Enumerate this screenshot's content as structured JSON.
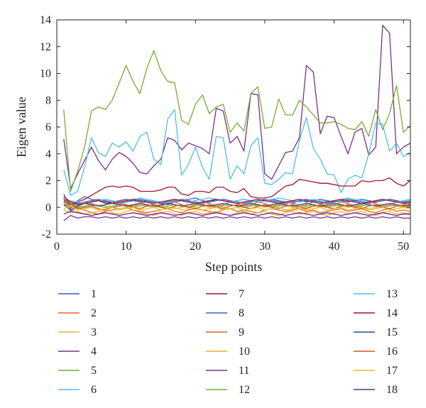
{
  "chart_data": {
    "type": "line",
    "title": "",
    "xlabel": "Step points",
    "ylabel": "Eigen value",
    "xlim": [
      0,
      51
    ],
    "ylim": [
      -2,
      14
    ],
    "xticks": [
      0,
      10,
      20,
      30,
      40,
      50
    ],
    "yticks": [
      -2,
      0,
      2,
      4,
      6,
      8,
      10,
      12,
      14
    ],
    "grid": false,
    "legend": "below, three columns",
    "x": [
      1,
      2,
      3,
      4,
      5,
      6,
      7,
      8,
      9,
      10,
      11,
      12,
      13,
      14,
      15,
      16,
      17,
      18,
      19,
      20,
      21,
      22,
      23,
      24,
      25,
      26,
      27,
      28,
      29,
      30,
      31,
      32,
      33,
      34,
      35,
      36,
      37,
      38,
      39,
      40,
      41,
      42,
      43,
      44,
      45,
      46,
      47,
      48,
      49,
      50,
      51
    ],
    "series": [
      {
        "name": "1",
        "color": "#2f65c4",
        "values": [
          1.0,
          -0.1,
          0.5,
          0.8,
          0.6,
          0.5,
          0.3,
          0.4,
          0.5,
          0.6,
          0.5,
          0.4,
          0.5,
          0.4,
          0.3,
          0.2,
          0.4,
          0.5,
          0.6,
          0.7,
          0.5,
          0.4,
          0.6,
          0.5,
          0.4,
          0.5,
          0.6,
          0.5,
          0.4,
          0.5,
          0.6,
          0.5,
          0.4,
          0.3,
          0.5,
          0.4,
          0.5,
          0.6,
          0.5,
          0.4,
          0.5,
          0.4,
          0.5,
          0.6,
          0.5,
          0.4,
          0.5,
          0.6,
          0.5,
          0.4,
          0.5
        ]
      },
      {
        "name": "2",
        "color": "#e8622a",
        "values": [
          0.7,
          -0.3,
          0.0,
          -0.2,
          -0.4,
          -0.5,
          -0.3,
          -0.2,
          -0.1,
          0.0,
          -0.2,
          -0.3,
          -0.4,
          -0.3,
          -0.2,
          -0.1,
          -0.3,
          -0.4,
          -0.2,
          -0.1,
          -0.2,
          -0.3,
          -0.4,
          -0.2,
          -0.1,
          -0.3,
          -0.2,
          -0.3,
          -0.4,
          -0.2,
          -0.1,
          -0.2,
          -0.3,
          -0.2,
          -0.1,
          -0.3,
          -0.2,
          -0.4,
          -0.3,
          -0.2,
          -0.1,
          -0.3,
          -0.2,
          -0.1,
          -0.3,
          -0.4,
          -0.2,
          -0.1,
          -0.3,
          -0.2,
          -0.3
        ]
      },
      {
        "name": "3",
        "color": "#e6b52a",
        "values": [
          0.3,
          0.2,
          0.1,
          0.0,
          0.1,
          0.2,
          0.1,
          0.0,
          -0.1,
          0.0,
          0.1,
          0.2,
          0.1,
          0.0,
          0.1,
          0.0,
          -0.1,
          0.0,
          0.1,
          0.2,
          0.1,
          0.0,
          0.1,
          0.0,
          -0.1,
          0.0,
          0.1,
          0.2,
          0.1,
          0.0,
          0.1,
          0.2,
          0.1,
          0.0,
          -0.1,
          0.0,
          0.1,
          0.0,
          0.1,
          0.2,
          0.1,
          0.0,
          0.1,
          0.0,
          -0.1,
          0.0,
          0.1,
          0.2,
          0.1,
          0.0,
          0.1
        ]
      },
      {
        "name": "4",
        "color": "#7b2d8e",
        "values": [
          5.1,
          1.4,
          2.5,
          3.5,
          4.5,
          3.5,
          2.8,
          3.6,
          4.1,
          3.8,
          3.3,
          2.6,
          2.5,
          3.1,
          3.6,
          5.2,
          5.0,
          4.3,
          4.8,
          4.6,
          4.4,
          4.0,
          7.4,
          7.2,
          4.8,
          5.3,
          4.2,
          8.5,
          8.4,
          2.5,
          2.1,
          3.1,
          4.1,
          4.2,
          5.2,
          10.6,
          10.1,
          5.5,
          6.8,
          6.7,
          5.3,
          4.0,
          5.6,
          5.9,
          3.9,
          4.5,
          13.6,
          13.0,
          4.0,
          4.5,
          4.8
        ]
      },
      {
        "name": "5",
        "color": "#77ac30",
        "values": [
          7.3,
          1.2,
          2.7,
          4.5,
          7.2,
          7.5,
          7.3,
          8.0,
          9.3,
          10.6,
          9.4,
          8.5,
          10.4,
          11.7,
          10.2,
          9.4,
          9.3,
          6.5,
          6.2,
          7.7,
          8.4,
          7.0,
          7.5,
          7.7,
          5.6,
          6.3,
          5.7,
          8.5,
          9.0,
          5.9,
          6.0,
          8.1,
          6.9,
          6.9,
          8.0,
          7.5,
          6.9,
          6.3,
          6.3,
          6.4,
          6.2,
          5.9,
          5.8,
          6.4,
          5.3,
          7.3,
          5.8,
          7.0,
          9.1,
          5.6,
          6.1
        ]
      },
      {
        "name": "6",
        "color": "#4dbeee",
        "values": [
          2.8,
          0.9,
          1.2,
          3.0,
          5.2,
          4.1,
          3.8,
          4.8,
          4.5,
          4.9,
          4.2,
          5.3,
          5.6,
          3.6,
          3.2,
          6.6,
          7.3,
          2.4,
          3.2,
          4.5,
          3.0,
          2.1,
          5.3,
          5.2,
          2.1,
          3.1,
          2.5,
          4.6,
          5.2,
          1.8,
          1.7,
          2.1,
          2.6,
          2.5,
          5.0,
          6.7,
          4.4,
          3.6,
          2.5,
          2.4,
          1.1,
          2.1,
          2.4,
          2.2,
          4.0,
          6.3,
          6.2,
          4.2,
          4.8,
          3.8,
          4.1
        ]
      },
      {
        "name": "7",
        "color": "#a2142f",
        "values": [
          0.5,
          0.2,
          0.4,
          0.6,
          0.9,
          1.2,
          1.5,
          1.6,
          1.5,
          1.6,
          1.5,
          1.2,
          1.2,
          1.2,
          1.3,
          1.5,
          1.5,
          1.0,
          0.9,
          1.2,
          1.2,
          1.1,
          1.5,
          1.5,
          1.2,
          1.1,
          1.4,
          0.8,
          0.7,
          0.7,
          0.8,
          1.2,
          1.6,
          1.7,
          2.1,
          2.0,
          1.9,
          1.8,
          1.8,
          1.7,
          1.6,
          1.6,
          1.6,
          2.0,
          1.9,
          2.0,
          2.0,
          2.2,
          1.8,
          1.6,
          2.0
        ]
      },
      {
        "name": "8",
        "color": "#2f65c4",
        "values": [
          0.6,
          0.4,
          0.3,
          0.4,
          0.5,
          0.6,
          0.5,
          0.4,
          0.3,
          0.4,
          0.5,
          0.6,
          0.5,
          0.4,
          0.3,
          0.4,
          0.5,
          0.6,
          0.5,
          0.4,
          0.3,
          0.4,
          0.5,
          0.6,
          0.5,
          0.4,
          0.3,
          0.4,
          0.5,
          0.6,
          0.5,
          0.4,
          0.3,
          0.4,
          0.5,
          0.6,
          0.5,
          0.4,
          0.3,
          0.4,
          0.5,
          0.6,
          0.5,
          0.4,
          0.3,
          0.4,
          0.5,
          0.6,
          0.5,
          0.4,
          0.3
        ]
      },
      {
        "name": "9",
        "color": "#e8622a",
        "values": [
          0.4,
          0.0,
          0.2,
          0.4,
          0.3,
          0.1,
          0.2,
          0.4,
          0.3,
          0.2,
          0.1,
          0.3,
          0.4,
          0.2,
          0.1,
          0.3,
          0.4,
          0.2,
          0.0,
          0.2,
          0.4,
          0.3,
          0.1,
          0.2,
          0.4,
          0.3,
          0.1,
          0.2,
          0.4,
          0.3,
          0.1,
          0.2,
          0.4,
          0.3,
          0.1,
          0.2,
          0.4,
          0.3,
          0.1,
          0.2,
          0.4,
          0.3,
          0.1,
          0.2,
          0.4,
          0.3,
          0.1,
          0.2,
          0.4,
          0.3,
          0.2
        ]
      },
      {
        "name": "10",
        "color": "#edb120",
        "values": [
          -0.2,
          -0.4,
          -0.3,
          -0.5,
          -0.4,
          -0.3,
          -0.2,
          -0.4,
          -0.5,
          -0.3,
          -0.2,
          -0.4,
          -0.5,
          -0.6,
          -0.4,
          -0.3,
          -0.5,
          -0.6,
          -0.4,
          -0.3,
          -0.5,
          -0.4,
          -0.3,
          -0.5,
          -0.6,
          -0.4,
          -0.3,
          -0.5,
          -0.4,
          -0.3,
          -0.5,
          -0.6,
          -0.4,
          -0.3,
          -0.5,
          -0.4,
          -0.3,
          -0.5,
          -0.6,
          -0.4,
          -0.3,
          -0.5,
          -0.4,
          -0.3,
          -0.5,
          -0.6,
          -0.4,
          -0.3,
          -0.5,
          -0.4,
          -0.5
        ]
      },
      {
        "name": "11",
        "color": "#7e2f8e",
        "values": [
          -1.0,
          -0.6,
          -0.8,
          -0.7,
          -0.7,
          -0.8,
          -0.7,
          -0.8,
          -0.7,
          -0.8,
          -0.7,
          -0.8,
          -0.7,
          -0.8,
          -0.7,
          -0.8,
          -0.7,
          -0.8,
          -0.7,
          -0.8,
          -0.7,
          -0.8,
          -0.7,
          -0.8,
          -0.7,
          -0.8,
          -0.7,
          -0.8,
          -0.7,
          -0.8,
          -0.7,
          -0.8,
          -0.7,
          -0.8,
          -0.7,
          -0.8,
          -0.7,
          -0.8,
          -0.7,
          -0.8,
          -0.7,
          -0.8,
          -0.7,
          -0.8,
          -0.7,
          -0.8,
          -0.7,
          -0.8,
          -0.7,
          -0.8,
          -0.8
        ]
      },
      {
        "name": "12",
        "color": "#77ac30",
        "values": [
          0.2,
          0.1,
          0.0,
          0.1,
          0.2,
          0.1,
          0.0,
          0.1,
          0.2,
          0.1,
          0.0,
          0.1,
          0.2,
          0.1,
          0.0,
          0.1,
          0.2,
          0.1,
          0.0,
          0.1,
          0.2,
          0.1,
          0.0,
          0.1,
          0.2,
          0.1,
          0.0,
          0.1,
          0.2,
          0.1,
          0.0,
          0.1,
          0.2,
          0.1,
          0.0,
          0.1,
          0.2,
          0.1,
          0.0,
          0.1,
          0.2,
          0.1,
          0.0,
          0.1,
          0.2,
          0.1,
          0.0,
          0.1,
          0.2,
          0.1,
          0.1
        ]
      },
      {
        "name": "13",
        "color": "#4dbeee",
        "values": [
          0.3,
          0.5,
          0.4,
          0.3,
          0.4,
          0.5,
          0.6,
          0.5,
          0.4,
          0.5,
          0.6,
          0.7,
          0.6,
          0.5,
          0.4,
          0.5,
          0.6,
          0.5,
          0.4,
          0.5,
          0.6,
          0.7,
          0.6,
          0.5,
          0.4,
          0.5,
          0.6,
          0.5,
          0.4,
          0.5,
          0.6,
          0.7,
          0.6,
          0.5,
          0.4,
          0.5,
          0.6,
          0.5,
          0.4,
          0.5,
          0.6,
          0.7,
          0.6,
          0.5,
          0.4,
          0.5,
          0.6,
          0.5,
          0.4,
          0.5,
          0.6
        ]
      },
      {
        "name": "14",
        "color": "#a2142f",
        "values": [
          0.8,
          0.4,
          0.2,
          0.3,
          0.4,
          0.5,
          0.4,
          0.3,
          0.4,
          0.5,
          0.6,
          0.5,
          0.4,
          0.3,
          0.4,
          0.5,
          0.6,
          0.5,
          0.4,
          0.3,
          0.4,
          0.5,
          0.6,
          0.5,
          0.4,
          0.3,
          0.4,
          0.5,
          0.6,
          0.5,
          0.4,
          0.3,
          0.4,
          0.5,
          0.6,
          0.5,
          0.4,
          0.3,
          0.4,
          0.5,
          0.6,
          0.5,
          0.4,
          0.3,
          0.4,
          0.5,
          0.6,
          0.5,
          0.4,
          0.3,
          0.4
        ]
      },
      {
        "name": "15",
        "color": "#1f4f9e",
        "values": [
          0.2,
          -0.2,
          0.1,
          0.3,
          0.2,
          0.1,
          0.2,
          0.3,
          0.2,
          0.1,
          0.2,
          0.3,
          0.2,
          0.1,
          0.2,
          0.3,
          0.2,
          0.1,
          0.2,
          0.3,
          0.2,
          0.1,
          0.2,
          0.3,
          0.2,
          0.1,
          0.2,
          0.3,
          0.2,
          0.1,
          0.2,
          0.3,
          0.2,
          0.1,
          0.2,
          0.3,
          0.2,
          0.1,
          0.2,
          0.3,
          0.2,
          0.1,
          0.2,
          0.3,
          0.2,
          0.1,
          0.2,
          0.3,
          0.2,
          0.1,
          0.2
        ]
      },
      {
        "name": "16",
        "color": "#d95319",
        "values": [
          0.6,
          0.3,
          -0.1,
          0.0,
          0.1,
          -0.1,
          -0.2,
          0.0,
          0.1,
          0.2,
          0.0,
          -0.1,
          0.1,
          0.2,
          0.0,
          -0.1,
          0.1,
          0.2,
          0.0,
          -0.1,
          0.1,
          0.2,
          0.0,
          -0.1,
          0.1,
          0.2,
          0.0,
          -0.1,
          0.1,
          0.2,
          0.0,
          -0.1,
          0.1,
          0.2,
          0.0,
          -0.1,
          0.1,
          0.2,
          0.0,
          -0.1,
          0.1,
          0.2,
          0.0,
          -0.1,
          0.1,
          0.2,
          0.0,
          -0.1,
          0.1,
          0.2,
          0.1
        ]
      },
      {
        "name": "17",
        "color": "#f0b81a",
        "values": [
          -0.1,
          0.1,
          -0.2,
          -0.1,
          0.0,
          -0.2,
          -0.1,
          0.0,
          -0.2,
          -0.1,
          0.0,
          -0.2,
          -0.1,
          0.0,
          -0.2,
          -0.1,
          0.0,
          -0.2,
          -0.1,
          0.0,
          -0.2,
          -0.1,
          0.0,
          -0.2,
          -0.1,
          0.0,
          -0.2,
          -0.1,
          0.0,
          -0.2,
          -0.1,
          0.0,
          -0.2,
          -0.1,
          0.0,
          -0.2,
          -0.1,
          0.0,
          -0.2,
          -0.1,
          0.0,
          -0.2,
          -0.1,
          0.0,
          -0.2,
          -0.1,
          0.0,
          -0.2,
          -0.1,
          0.0,
          -0.1
        ]
      },
      {
        "name": "18",
        "color": "#6a2b86",
        "values": [
          -0.5,
          -0.3,
          -0.4,
          -0.5,
          -0.6,
          -0.5,
          -0.4,
          -0.5,
          -0.6,
          -0.5,
          -0.4,
          -0.5,
          -0.6,
          -0.5,
          -0.4,
          -0.5,
          -0.6,
          -0.5,
          -0.4,
          -0.5,
          -0.6,
          -0.5,
          -0.4,
          -0.5,
          -0.6,
          -0.5,
          -0.4,
          -0.5,
          -0.6,
          -0.5,
          -0.4,
          -0.5,
          -0.6,
          -0.5,
          -0.4,
          -0.5,
          -0.6,
          -0.5,
          -0.4,
          -0.5,
          -0.6,
          -0.5,
          -0.4,
          -0.5,
          -0.6,
          -0.5,
          -0.4,
          -0.5,
          -0.6,
          -0.5,
          -0.5
        ]
      }
    ]
  }
}
